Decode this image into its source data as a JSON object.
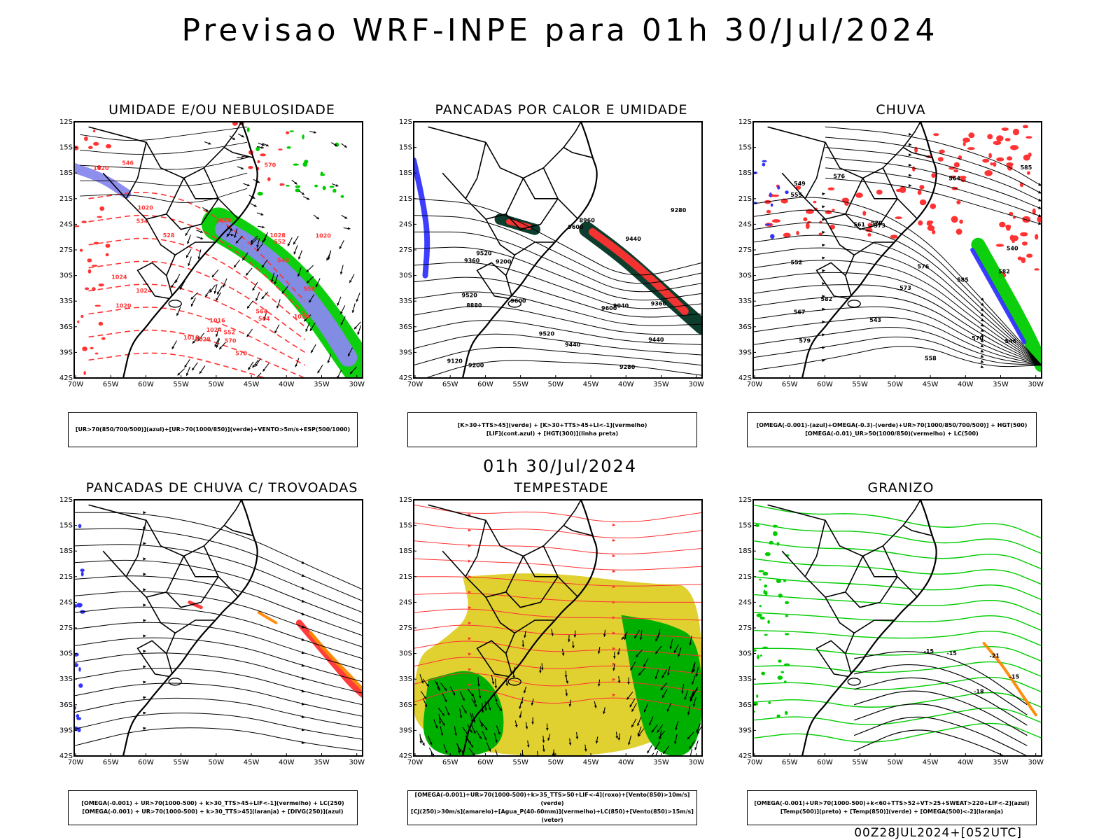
{
  "main_title": "Previsao WRF-INPE  para 01h 30/Jul/2024",
  "mid_title": "01h 30/Jul/2024",
  "footer": "00Z28JUL2024+[052UTC]",
  "lat_ticks": [
    "12S",
    "15S",
    "18S",
    "21S",
    "24S",
    "27S",
    "30S",
    "33S",
    "36S",
    "39S",
    "42S"
  ],
  "lon_ticks": [
    "70W",
    "65W",
    "60W",
    "55W",
    "50W",
    "45W",
    "40W",
    "35W",
    "30W"
  ],
  "panels": [
    {
      "title": "UMIDADE E/OU NEBULOSIDADE",
      "legend": [
        "[UR>70(850/700/500)](azul)+[UR>70(1000/850)](verde)+VENTO>5m/s+ESP(500/1000)"
      ],
      "labels": [
        "1016",
        "1016",
        "1020",
        "1020",
        "1020",
        "1020",
        "1024",
        "1024",
        "1028",
        "1020",
        "1024",
        "1020",
        "1028",
        "570",
        "570",
        "570",
        "564",
        "564",
        "558",
        "552",
        "546",
        "540",
        "534",
        "528",
        "552"
      ]
    },
    {
      "title": "PANCADAS POR CALOR E UMIDADE",
      "legend": [
        "[K>30+TTS>45](verde) + [K>30+TTS>45+LI<-1](vermelho)",
        "[LIF](cont.azul) + [HGT(300)](linha preta)"
      ],
      "labels": [
        "9600",
        "9600",
        "9600",
        "9520",
        "9520",
        "9520",
        "9440",
        "9440",
        "9440",
        "9360",
        "9360",
        "9280",
        "9280",
        "9200",
        "9120",
        "9040",
        "8960",
        "8880",
        "9200"
      ]
    },
    {
      "title": "CHUVA",
      "legend": [
        "[OMEGA(-0.001)-(azul)+OMEGA(-0.3)-(verde)+UR>70(1000/850/700/500)] + HGT(500)",
        "[OMEGA(-0.01)_UR>50(1000/850)(vermelho) + LC(500)"
      ],
      "labels": [
        "585",
        "582",
        "579",
        "576",
        "573",
        "570",
        "567",
        "564",
        "561",
        "558",
        "555",
        "552",
        "549",
        "546",
        "543",
        "540",
        "573",
        "576",
        "579",
        "582",
        "585"
      ]
    },
    {
      "title": "PANCADAS DE CHUVA C/ TROVOADAS",
      "legend": [
        "[OMEGA(-0.001) + UR>70(1000-500) + k>30_TTS>45+LIF<-1](vermelho) + LC(250)",
        "[OMEGA(-0.001) + UR>70(1000-500) + k>30_TTS>45](laranja) + [DIVG(250)](azul)"
      ],
      "labels": []
    },
    {
      "title": "TEMPESTADE",
      "legend": [
        "[OMEGA(-0.001)+UR>70(1000-500)+k>35_TTS>50+LIF<-4](roxo)+[Vento(850)>10m/s](verde)",
        "[CJ(250)>30m/s](amarelo)+[Agua_P(40-60mm)](vermelho)+LC(850)+[Vento(850)>15m/s](vetor)"
      ],
      "labels": []
    },
    {
      "title": "GRANIZO",
      "legend": [
        "[OMEGA(-0.001)+UR>70(1000-500)+k<60+TTS>52+VT>25+SWEAT>220+LIF<-2](azul)",
        "[Temp(500)](preto) + [Temp(850)](verde) + [OMEGA(500)<-2](laranja)"
      ],
      "labels": [
        "-15",
        "-18",
        "-21",
        "-15",
        "-15"
      ]
    }
  ],
  "colors": {
    "blue": "#3333ff",
    "green": "#00cc00",
    "red": "#ff3333",
    "orange": "#ff8800",
    "yellow": "#e0d030",
    "darkgreen": "#003322",
    "lavender": "#8888ee",
    "brightgreen": "#00b000"
  }
}
